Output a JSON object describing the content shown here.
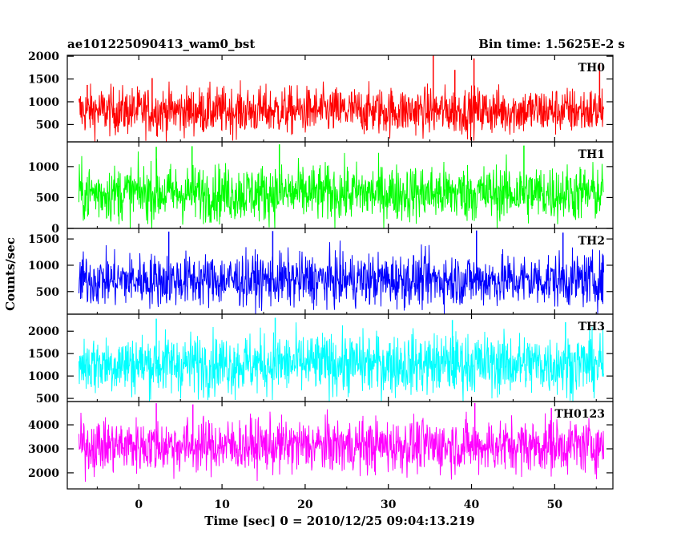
{
  "header": {
    "left_title": "ae101225090413_wam0_bst",
    "right_title": "Bin time: 1.5625E-2 s"
  },
  "chart_data": {
    "type": "line",
    "xlabel": "Time [sec] 0 = 2010/12/25 09:04:13.219",
    "ylabel": "Counts/sec",
    "xlim": [
      -8.6,
      57
    ],
    "x_ticks": [
      0,
      10,
      20,
      30,
      40,
      50
    ],
    "x_tick_labels": [
      "0",
      "10",
      "20",
      "30",
      "40",
      "50"
    ],
    "grid": false,
    "panels": [
      {
        "name": "TH0",
        "color": "#ff0000",
        "ylim": [
          120,
          2020
        ],
        "y_ticks": [
          500,
          1000,
          1500,
          2000
        ],
        "y_tick_labels": [
          "500",
          "1000",
          "1500",
          "2000"
        ],
        "mean": 800,
        "spread": 260,
        "series": [
          {
            "x": -6.2,
            "y": 1370
          },
          {
            "x": 1.6,
            "y": 1520
          },
          {
            "x": 35.4,
            "y": 2020
          },
          {
            "x": 38.0,
            "y": 1700
          },
          {
            "x": 40.3,
            "y": 1950
          },
          {
            "x": 55.4,
            "y": 1850
          }
        ]
      },
      {
        "name": "TH1",
        "color": "#00ff00",
        "ylim": [
          0,
          1400
        ],
        "y_ticks": [
          0,
          500,
          1000
        ],
        "y_tick_labels": [
          "0",
          "500",
          "1000"
        ],
        "mean": 570,
        "spread": 230,
        "series": [
          {
            "x": 2.1,
            "y": 1320
          },
          {
            "x": 6.4,
            "y": 1330
          },
          {
            "x": 16.9,
            "y": 1360
          },
          {
            "x": 46.3,
            "y": 1340
          }
        ]
      },
      {
        "name": "TH2",
        "color": "#0000ff",
        "ylim": [
          70,
          1700
        ],
        "y_ticks": [
          500,
          1000,
          1500
        ],
        "y_tick_labels": [
          "500",
          "1000",
          "1500"
        ],
        "mean": 720,
        "spread": 250,
        "series": [
          {
            "x": 3.6,
            "y": 1640
          },
          {
            "x": 16.1,
            "y": 1650
          },
          {
            "x": 40.6,
            "y": 1660
          },
          {
            "x": 51.0,
            "y": 1620
          }
        ]
      },
      {
        "name": "TH3",
        "color": "#00ffff",
        "ylim": [
          430,
          2380
        ],
        "y_ticks": [
          500,
          1000,
          1500,
          2000
        ],
        "y_tick_labels": [
          "500",
          "1000",
          "1500",
          "2000"
        ],
        "mean": 1270,
        "spread": 340,
        "series": [
          {
            "x": 2.1,
            "y": 2280
          },
          {
            "x": 16.4,
            "y": 2300
          },
          {
            "x": 37.7,
            "y": 2250
          },
          {
            "x": 51.3,
            "y": 2200
          }
        ]
      },
      {
        "name": "TH0123",
        "color": "#ff00ff",
        "ylim": [
          1330,
          4970
        ],
        "y_ticks": [
          2000,
          3000,
          4000
        ],
        "y_tick_labels": [
          "2000",
          "3000",
          "4000"
        ],
        "mean": 3130,
        "spread": 560,
        "series": [
          {
            "x": 2.1,
            "y": 4900
          },
          {
            "x": 6.5,
            "y": 4850
          },
          {
            "x": 40.4,
            "y": 4910
          },
          {
            "x": 49.6,
            "y": 4700
          }
        ]
      }
    ]
  }
}
